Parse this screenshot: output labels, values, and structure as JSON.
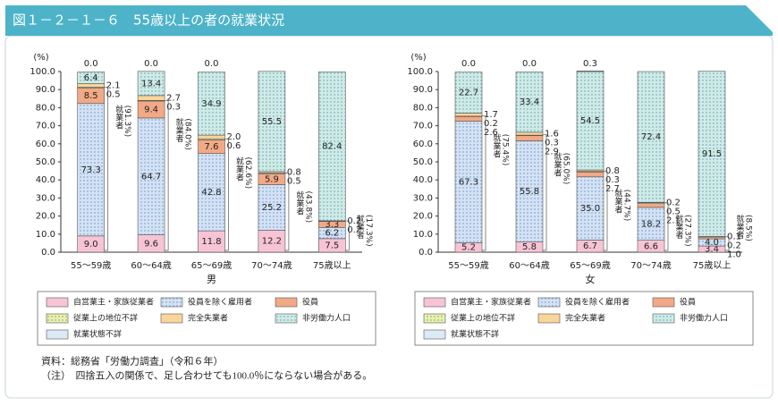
{
  "header": {
    "title": "図１－２－１－６　55歳以上の者の就業状況"
  },
  "notes": [
    "資料：総務省「労働力調査」（令和６年）",
    "（注）　四捨五入の関係で、足し合わせても100.0％にならない場合がある。"
  ],
  "chart_data": [
    {
      "type": "stacked-bar",
      "xlabel": "男",
      "ylabel": "(%)",
      "categories": [
        "55～59歳",
        "60～64歳",
        "65～69歳",
        "70～74歳",
        "75歳以上"
      ],
      "ylim": [
        0,
        100
      ],
      "yticks": [
        {
          "value": 0,
          "label": "0.0"
        },
        {
          "value": 10,
          "label": "10.0"
        },
        {
          "value": 20,
          "label": "20.0"
        },
        {
          "value": 30,
          "label": "30.0"
        },
        {
          "value": 40,
          "label": "40.0"
        },
        {
          "value": 50,
          "label": "50.0"
        },
        {
          "value": 60,
          "label": "60.0"
        },
        {
          "value": 70,
          "label": "70.0"
        },
        {
          "value": 80,
          "label": "80.0"
        },
        {
          "value": 90,
          "label": "90.0"
        },
        {
          "value": 100,
          "label": "100.0"
        }
      ],
      "employed_label": "就業者",
      "employed_values": [
        91.3,
        84.0,
        62.6,
        43.8,
        17.3
      ],
      "employed_value_labels": [
        "(91.3%)",
        "(84.0%)",
        "(62.6%)",
        "(43.8%)",
        "(17.3%)"
      ],
      "series": [
        {
          "name": "自営業主・家族従業者",
          "color": "#f7c4d6",
          "pattern": "none",
          "values": [
            9.0,
            9.6,
            11.8,
            12.2,
            7.5
          ],
          "value_labels": [
            "9.0",
            "9.6",
            "11.8",
            "12.2",
            "7.5"
          ]
        },
        {
          "name": "役員を除く雇用者",
          "color": "#d3e2f6",
          "pattern": "dots",
          "values": [
            73.3,
            64.7,
            42.8,
            25.2,
            6.2
          ],
          "value_labels": [
            "73.3",
            "64.7",
            "42.8",
            "25.2",
            "6.2"
          ]
        },
        {
          "name": "役員",
          "color": "#f2a985",
          "pattern": "none",
          "values": [
            8.5,
            9.4,
            7.6,
            5.9,
            3.3
          ],
          "value_labels": [
            "8.5",
            "9.4",
            "7.6",
            "5.9",
            "3.3"
          ]
        },
        {
          "name": "従業上の地位不詳",
          "color": "#e9f2a6",
          "pattern": "dots",
          "values": [
            0.5,
            0.3,
            0.6,
            0.5,
            0.2
          ],
          "value_labels": [
            "0.5",
            "0.3",
            "0.6",
            "0.5",
            "0.2"
          ]
        },
        {
          "name": "完全失業者",
          "color": "#f9d59a",
          "pattern": "none",
          "values": [
            2.1,
            2.7,
            2.0,
            0.8,
            0.2
          ],
          "value_labels": [
            "2.1",
            "2.7",
            "2.0",
            "0.8",
            "0.2"
          ]
        },
        {
          "name": "非労働力人口",
          "color": "#cdece6",
          "pattern": "dots",
          "values": [
            6.4,
            13.4,
            34.9,
            55.5,
            82.4
          ],
          "value_labels": [
            "6.4",
            "13.4",
            "34.9",
            "55.5",
            "82.4"
          ]
        },
        {
          "name": "就業状態不詳",
          "color": "#dce9f7",
          "pattern": "none",
          "values": [
            0,
            0,
            0,
            null,
            null
          ],
          "value_labels": [
            "0.0",
            "0.0",
            "0.0",
            null,
            null
          ]
        }
      ]
    },
    {
      "type": "stacked-bar",
      "xlabel": "女",
      "ylabel": "(%)",
      "categories": [
        "55～59歳",
        "60～64歳",
        "65～69歳",
        "70～74歳",
        "75歳以上"
      ],
      "ylim": [
        0,
        100
      ],
      "yticks": [
        {
          "value": 0,
          "label": "0.0"
        },
        {
          "value": 10,
          "label": "10.0"
        },
        {
          "value": 20,
          "label": "20.0"
        },
        {
          "value": 30,
          "label": "30.0"
        },
        {
          "value": 40,
          "label": "40.0"
        },
        {
          "value": 50,
          "label": "50.0"
        },
        {
          "value": 60,
          "label": "60.0"
        },
        {
          "value": 70,
          "label": "70.0"
        },
        {
          "value": 80,
          "label": "80.0"
        },
        {
          "value": 90,
          "label": "90.0"
        },
        {
          "value": 100,
          "label": "100.0"
        }
      ],
      "employed_label": "就業者",
      "employed_values": [
        75.4,
        65.0,
        44.7,
        27.3,
        8.5
      ],
      "employed_value_labels": [
        "(75.4%)",
        "(65.0%)",
        "(44.7%)",
        "(27.3%)",
        "(8.5%)"
      ],
      "series": [
        {
          "name": "自営業主・家族従業者",
          "color": "#f7c4d6",
          "pattern": "none",
          "values": [
            5.2,
            5.8,
            6.7,
            6.6,
            3.4
          ],
          "value_labels": [
            "5.2",
            "5.8",
            "6.7",
            "6.6",
            "3.4"
          ]
        },
        {
          "name": "役員を除く雇用者",
          "color": "#d3e2f6",
          "pattern": "dots",
          "values": [
            67.3,
            55.8,
            35.0,
            18.2,
            4.0
          ],
          "value_labels": [
            "67.3",
            "55.8",
            "35.0",
            "18.2",
            "4.0"
          ]
        },
        {
          "name": "役員",
          "color": "#f2a985",
          "pattern": "none",
          "values": [
            2.6,
            2.9,
            2.7,
            2.1,
            1.0
          ],
          "value_labels": [
            "2.6",
            "2.9",
            "2.7",
            "2.1",
            "1.0"
          ]
        },
        {
          "name": "従業上の地位不詳",
          "color": "#e9f2a6",
          "pattern": "dots",
          "values": [
            0.2,
            0.3,
            0.3,
            0.5,
            0.2
          ],
          "value_labels": [
            "0.2",
            "0.3",
            "0.3",
            "0.5",
            "0.2"
          ]
        },
        {
          "name": "完全失業者",
          "color": "#f9d59a",
          "pattern": "none",
          "values": [
            1.7,
            1.6,
            0.8,
            0.2,
            0.1
          ],
          "value_labels": [
            "1.7",
            "1.6",
            "0.8",
            "0.2",
            "0.1"
          ]
        },
        {
          "name": "非労働力人口",
          "color": "#cdece6",
          "pattern": "dots",
          "values": [
            22.7,
            33.4,
            54.5,
            72.4,
            91.5
          ],
          "value_labels": [
            "22.7",
            "33.4",
            "54.5",
            "72.4",
            "91.5"
          ]
        },
        {
          "name": "就業状態不詳",
          "color": "#dce9f7",
          "pattern": "none",
          "values": [
            0,
            0,
            0.3,
            null,
            null
          ],
          "value_labels": [
            "0.0",
            "0.0",
            "0.3",
            null,
            null
          ]
        }
      ]
    }
  ]
}
